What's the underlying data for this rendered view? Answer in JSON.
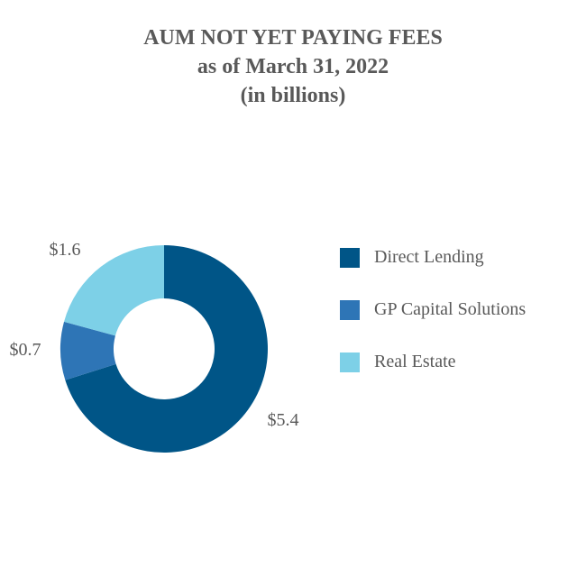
{
  "chart_data": {
    "type": "pie",
    "donut": true,
    "title": [
      "AUM NOT YET PAYING FEES",
      "as of March 31, 2022",
      "(in billions)"
    ],
    "categories": [
      "Direct Lending",
      "GP Capital Solutions",
      "Real Estate"
    ],
    "values": [
      5.4,
      0.7,
      1.6
    ],
    "data_labels": [
      "$5.4",
      "$0.7",
      "$1.6"
    ],
    "colors": [
      "#005587",
      "#2e75b6",
      "#7dd0e7"
    ],
    "legend_position": "right"
  }
}
